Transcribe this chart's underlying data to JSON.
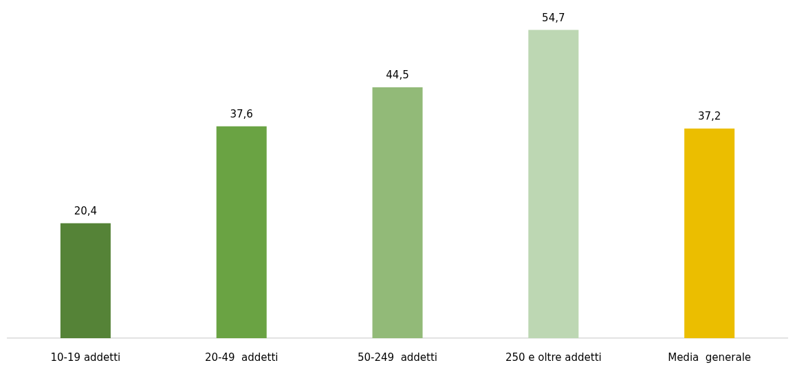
{
  "chart_data": {
    "type": "bar",
    "categories": [
      "10-19 addetti",
      "20-49  addetti",
      "50-249  addetti",
      "250 e oltre addetti",
      "Media  generale"
    ],
    "values": [
      20.4,
      37.6,
      44.5,
      54.7,
      37.2
    ],
    "colors": [
      "#558337",
      "#6aa343",
      "#92ba78",
      "#bdd7b3",
      "#ebbe00"
    ],
    "value_labels": [
      "20,4",
      "37,6",
      "44,5",
      "54,7",
      "37,2"
    ]
  }
}
